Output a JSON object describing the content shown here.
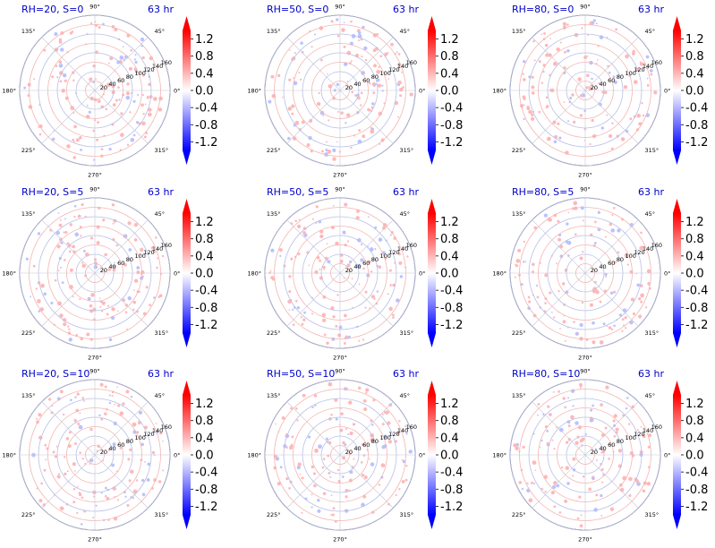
{
  "figure": {
    "panel_time_label": "63 hr",
    "colors": {
      "title": "#0000cc",
      "negative": "#0000ff",
      "positive": "#ff0000",
      "neutral": "#ffffff",
      "grid_red": "#f4b4b4",
      "grid_blue": "#b9bfe6"
    }
  },
  "chart_data": [
    {
      "type": "heatmap",
      "title": "RH=20, S=0",
      "annotation": "63 hr",
      "projection": "polar",
      "angle_ticks": [
        "0°",
        "45°",
        "90°",
        "135°",
        "180°",
        "225°",
        "270°",
        "315°"
      ],
      "radial_ticks": [
        "20",
        "40",
        "60",
        "80",
        "100",
        "120",
        "140",
        "160"
      ],
      "colorbar": {
        "ticks": [
          "1.2",
          "0.8",
          "0.4",
          "0.0",
          "-0.4",
          "-0.8",
          "-1.2"
        ],
        "range": [
          -1.4,
          1.4
        ],
        "cmap": "bwr",
        "extend": "both"
      }
    },
    {
      "type": "heatmap",
      "title": "RH=50, S=0",
      "annotation": "63 hr",
      "projection": "polar",
      "angle_ticks": [
        "0°",
        "45°",
        "90°",
        "135°",
        "180°",
        "225°",
        "270°",
        "315°"
      ],
      "radial_ticks": [
        "20",
        "40",
        "60",
        "80",
        "100",
        "120",
        "140",
        "160"
      ],
      "colorbar": {
        "ticks": [
          "1.2",
          "0.8",
          "0.4",
          "0.0",
          "-0.4",
          "-0.8",
          "-1.2"
        ],
        "range": [
          -1.4,
          1.4
        ],
        "cmap": "bwr",
        "extend": "both"
      }
    },
    {
      "type": "heatmap",
      "title": "RH=80, S=0",
      "annotation": "63 hr",
      "projection": "polar",
      "angle_ticks": [
        "0°",
        "45°",
        "90°",
        "135°",
        "180°",
        "225°",
        "270°",
        "315°"
      ],
      "radial_ticks": [
        "20",
        "40",
        "60",
        "80",
        "100",
        "120",
        "140",
        "160"
      ],
      "colorbar": {
        "ticks": [
          "1.2",
          "0.8",
          "0.4",
          "0.0",
          "-0.4",
          "-0.8",
          "-1.2"
        ],
        "range": [
          -1.4,
          1.4
        ],
        "cmap": "bwr",
        "extend": "both"
      }
    },
    {
      "type": "heatmap",
      "title": "RH=20, S=5",
      "annotation": "63 hr",
      "projection": "polar",
      "angle_ticks": [
        "0°",
        "45°",
        "90°",
        "135°",
        "180°",
        "225°",
        "270°",
        "315°"
      ],
      "radial_ticks": [
        "20",
        "40",
        "60",
        "80",
        "100",
        "120",
        "140",
        "160"
      ],
      "colorbar": {
        "ticks": [
          "1.2",
          "0.8",
          "0.4",
          "0.0",
          "-0.4",
          "-0.8",
          "-1.2"
        ],
        "range": [
          -1.4,
          1.4
        ],
        "cmap": "bwr",
        "extend": "both"
      }
    },
    {
      "type": "heatmap",
      "title": "RH=50, S=5",
      "annotation": "63 hr",
      "projection": "polar",
      "angle_ticks": [
        "0°",
        "45°",
        "90°",
        "135°",
        "180°",
        "225°",
        "270°",
        "315°"
      ],
      "radial_ticks": [
        "20",
        "40",
        "60",
        "80",
        "100",
        "120",
        "140",
        "160"
      ],
      "colorbar": {
        "ticks": [
          "1.2",
          "0.8",
          "0.4",
          "0.0",
          "-0.4",
          "-0.8",
          "-1.2"
        ],
        "range": [
          -1.4,
          1.4
        ],
        "cmap": "bwr",
        "extend": "both"
      }
    },
    {
      "type": "heatmap",
      "title": "RH=80, S=5",
      "annotation": "63 hr",
      "projection": "polar",
      "angle_ticks": [
        "0°",
        "45°",
        "90°",
        "135°",
        "180°",
        "225°",
        "270°",
        "315°"
      ],
      "radial_ticks": [
        "20",
        "40",
        "60",
        "80",
        "100",
        "120",
        "140",
        "160"
      ],
      "colorbar": {
        "ticks": [
          "1.2",
          "0.8",
          "0.4",
          "0.0",
          "-0.4",
          "-0.8",
          "-1.2"
        ],
        "range": [
          -1.4,
          1.4
        ],
        "cmap": "bwr",
        "extend": "both"
      }
    },
    {
      "type": "heatmap",
      "title": "RH=20, S=10",
      "annotation": "63 hr",
      "projection": "polar",
      "angle_ticks": [
        "0°",
        "45°",
        "90°",
        "135°",
        "180°",
        "225°",
        "270°",
        "315°"
      ],
      "radial_ticks": [
        "20",
        "40",
        "60",
        "80",
        "100",
        "120",
        "140",
        "160"
      ],
      "colorbar": {
        "ticks": [
          "1.2",
          "0.8",
          "0.4",
          "0.0",
          "-0.4",
          "-0.8",
          "-1.2"
        ],
        "range": [
          -1.4,
          1.4
        ],
        "cmap": "bwr",
        "extend": "both"
      }
    },
    {
      "type": "heatmap",
      "title": "RH=50, S=10",
      "annotation": "63 hr",
      "projection": "polar",
      "angle_ticks": [
        "0°",
        "45°",
        "90°",
        "135°",
        "180°",
        "225°",
        "270°",
        "315°"
      ],
      "radial_ticks": [
        "20",
        "40",
        "60",
        "80",
        "100",
        "120",
        "140",
        "160"
      ],
      "colorbar": {
        "ticks": [
          "1.2",
          "0.8",
          "0.4",
          "0.0",
          "-0.4",
          "-0.8",
          "-1.2"
        ],
        "range": [
          -1.4,
          1.4
        ],
        "cmap": "bwr",
        "extend": "both"
      }
    },
    {
      "type": "heatmap",
      "title": "RH=80, S=10",
      "annotation": "63 hr",
      "projection": "polar",
      "angle_ticks": [
        "0°",
        "45°",
        "90°",
        "135°",
        "180°",
        "225°",
        "270°",
        "315°"
      ],
      "radial_ticks": [
        "20",
        "40",
        "60",
        "80",
        "100",
        "120",
        "140",
        "160"
      ],
      "colorbar": {
        "ticks": [
          "1.2",
          "0.8",
          "0.4",
          "0.0",
          "-0.4",
          "-0.8",
          "-1.2"
        ],
        "range": [
          -1.4,
          1.4
        ],
        "cmap": "bwr",
        "extend": "both"
      }
    }
  ]
}
